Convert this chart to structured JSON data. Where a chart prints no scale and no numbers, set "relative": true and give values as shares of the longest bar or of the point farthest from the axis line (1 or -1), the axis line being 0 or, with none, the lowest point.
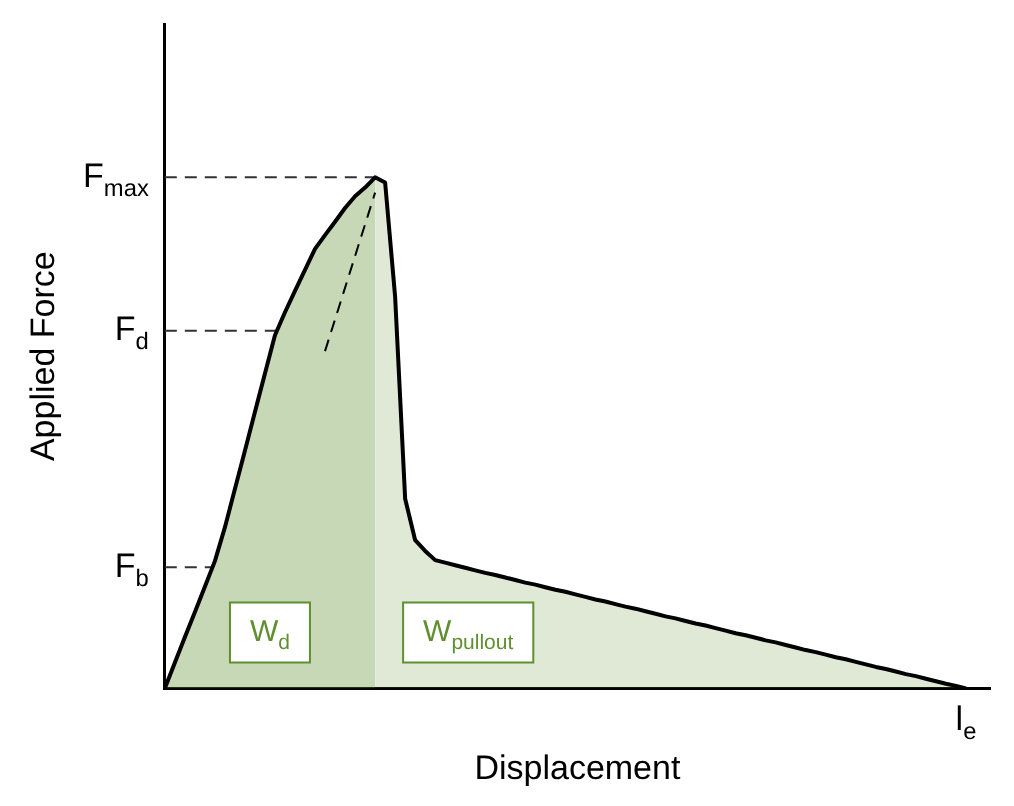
{
  "chart_data": {
    "type": "line",
    "xlabel": "Displacement",
    "ylabel": "Applied Force",
    "relative": true,
    "categories": [
      null,
      null,
      null,
      null,
      null,
      null,
      null,
      null,
      null,
      null,
      null,
      null,
      null,
      null,
      null,
      null,
      null,
      null,
      null,
      null,
      null,
      null,
      null,
      null,
      null,
      null,
      null,
      null,
      null,
      null,
      null,
      null,
      null,
      null,
      null,
      null,
      null,
      null,
      null,
      null,
      null,
      null,
      null,
      null,
      null,
      null,
      null,
      null,
      null,
      null,
      null,
      null,
      null,
      null,
      null,
      null,
      null,
      null,
      null,
      null,
      null,
      null,
      null,
      null,
      null,
      null,
      null,
      null,
      null,
      null,
      null,
      null,
      null,
      null,
      null,
      null,
      null,
      null,
      null,
      null,
      null
    ],
    "series": [
      {
        "color": "#000000",
        "values": [
          0,
          0.05,
          0.1,
          0.149,
          0.199,
          0.249,
          0.315,
          0.39,
          0.465,
          0.541,
          0.616,
          0.691,
          0.736,
          0.778,
          0.819,
          0.86,
          0.887,
          0.913,
          0.94,
          0.963,
          0.98,
          1,
          0.99,
          0.766,
          0.371,
          0.29,
          0.269,
          0.251,
          0.246,
          0.241,
          0.236,
          0.231,
          0.226,
          0.222,
          0.217,
          0.212,
          0.207,
          0.203,
          0.198,
          0.193,
          0.189,
          0.184,
          0.179,
          0.174,
          0.17,
          0.165,
          0.16,
          0.156,
          0.151,
          0.146,
          0.141,
          0.137,
          0.132,
          0.127,
          0.123,
          0.118,
          0.113,
          0.108,
          0.104,
          0.099,
          0.094,
          0.09,
          0.085,
          0.08,
          0.075,
          0.071,
          0.066,
          0.061,
          0.057,
          0.052,
          0.047,
          0.042,
          0.038,
          0.033,
          0.028,
          0.024,
          0.019,
          0.014,
          0.009,
          0.005,
          0
        ]
      },
      {
        "type": "line",
        "line_style": "dashed",
        "color": "#000000",
        "values": [
          null,
          null,
          null,
          null,
          null,
          null,
          null,
          null,
          null,
          null,
          null,
          null,
          null,
          null,
          null,
          null,
          0.66,
          null,
          null,
          null,
          null,
          0.97,
          null,
          null,
          null,
          null,
          null,
          null,
          null,
          null,
          null,
          null,
          null,
          null,
          null,
          null,
          null,
          null,
          null,
          null,
          null,
          null,
          null,
          null,
          null,
          null,
          null,
          null,
          null,
          null,
          null,
          null,
          null,
          null,
          null,
          null,
          null,
          null,
          null,
          null,
          null,
          null,
          null,
          null,
          null,
          null,
          null,
          null,
          null,
          null,
          null,
          null,
          null,
          null,
          null,
          null,
          null,
          null,
          null,
          null,
          null
        ]
      }
    ],
    "ref_lines": [
      {
        "axis": "y",
        "value": 1,
        "label": "F$_{max}$",
        "line_style": "dashed"
      },
      {
        "axis": "y",
        "value": 0.7,
        "label": "F$_{d}$",
        "line_style": "dashed"
      },
      {
        "axis": "y",
        "value": 0.237,
        "label": "F$_{b}$",
        "line_style": "dashed"
      }
    ],
    "annotations": [
      "W$_{d}$",
      "W$_{pullout}$",
      "l$_{e}$"
    ],
    "legend": false,
    "marker": "none",
    "line_style": "solid"
  }
}
